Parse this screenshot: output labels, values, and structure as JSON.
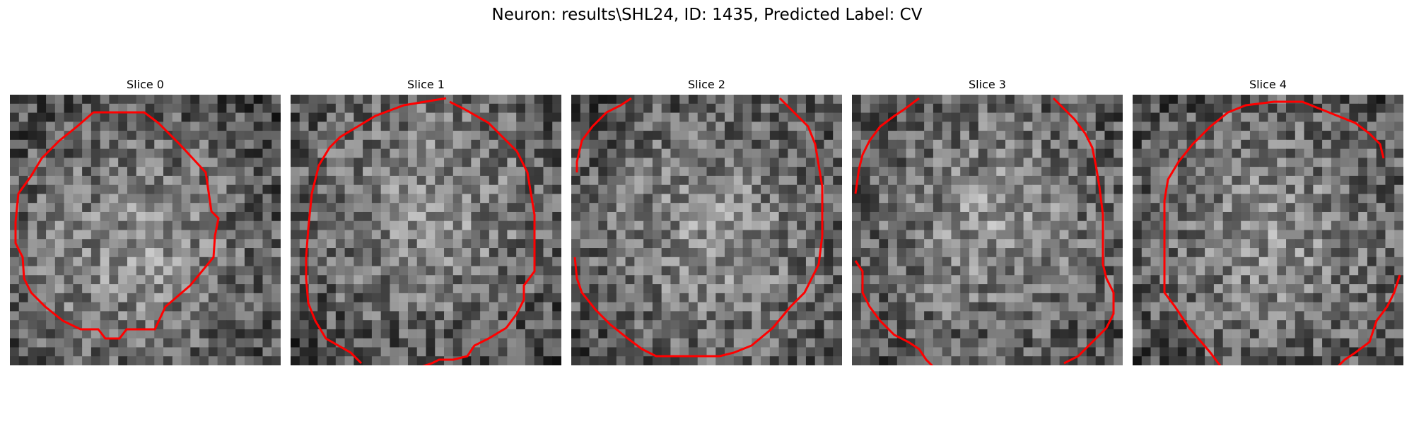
{
  "figure": {
    "title": "Neuron: results\\SHL24, ID: 1435, Predicted Label: CV",
    "contour_color": "#ff0000"
  },
  "panels": [
    {
      "title": "Slice 0",
      "seed": 11,
      "bright_center": [
        0.45,
        0.55
      ]
    },
    {
      "title": "Slice 1",
      "seed": 23,
      "bright_center": [
        0.5,
        0.4
      ]
    },
    {
      "title": "Slice 2",
      "seed": 37,
      "bright_center": [
        0.5,
        0.5
      ]
    },
    {
      "title": "Slice 3",
      "seed": 51,
      "bright_center": [
        0.5,
        0.45
      ]
    },
    {
      "title": "Slice 4",
      "seed": 67,
      "bright_center": [
        0.5,
        0.5
      ]
    }
  ]
}
